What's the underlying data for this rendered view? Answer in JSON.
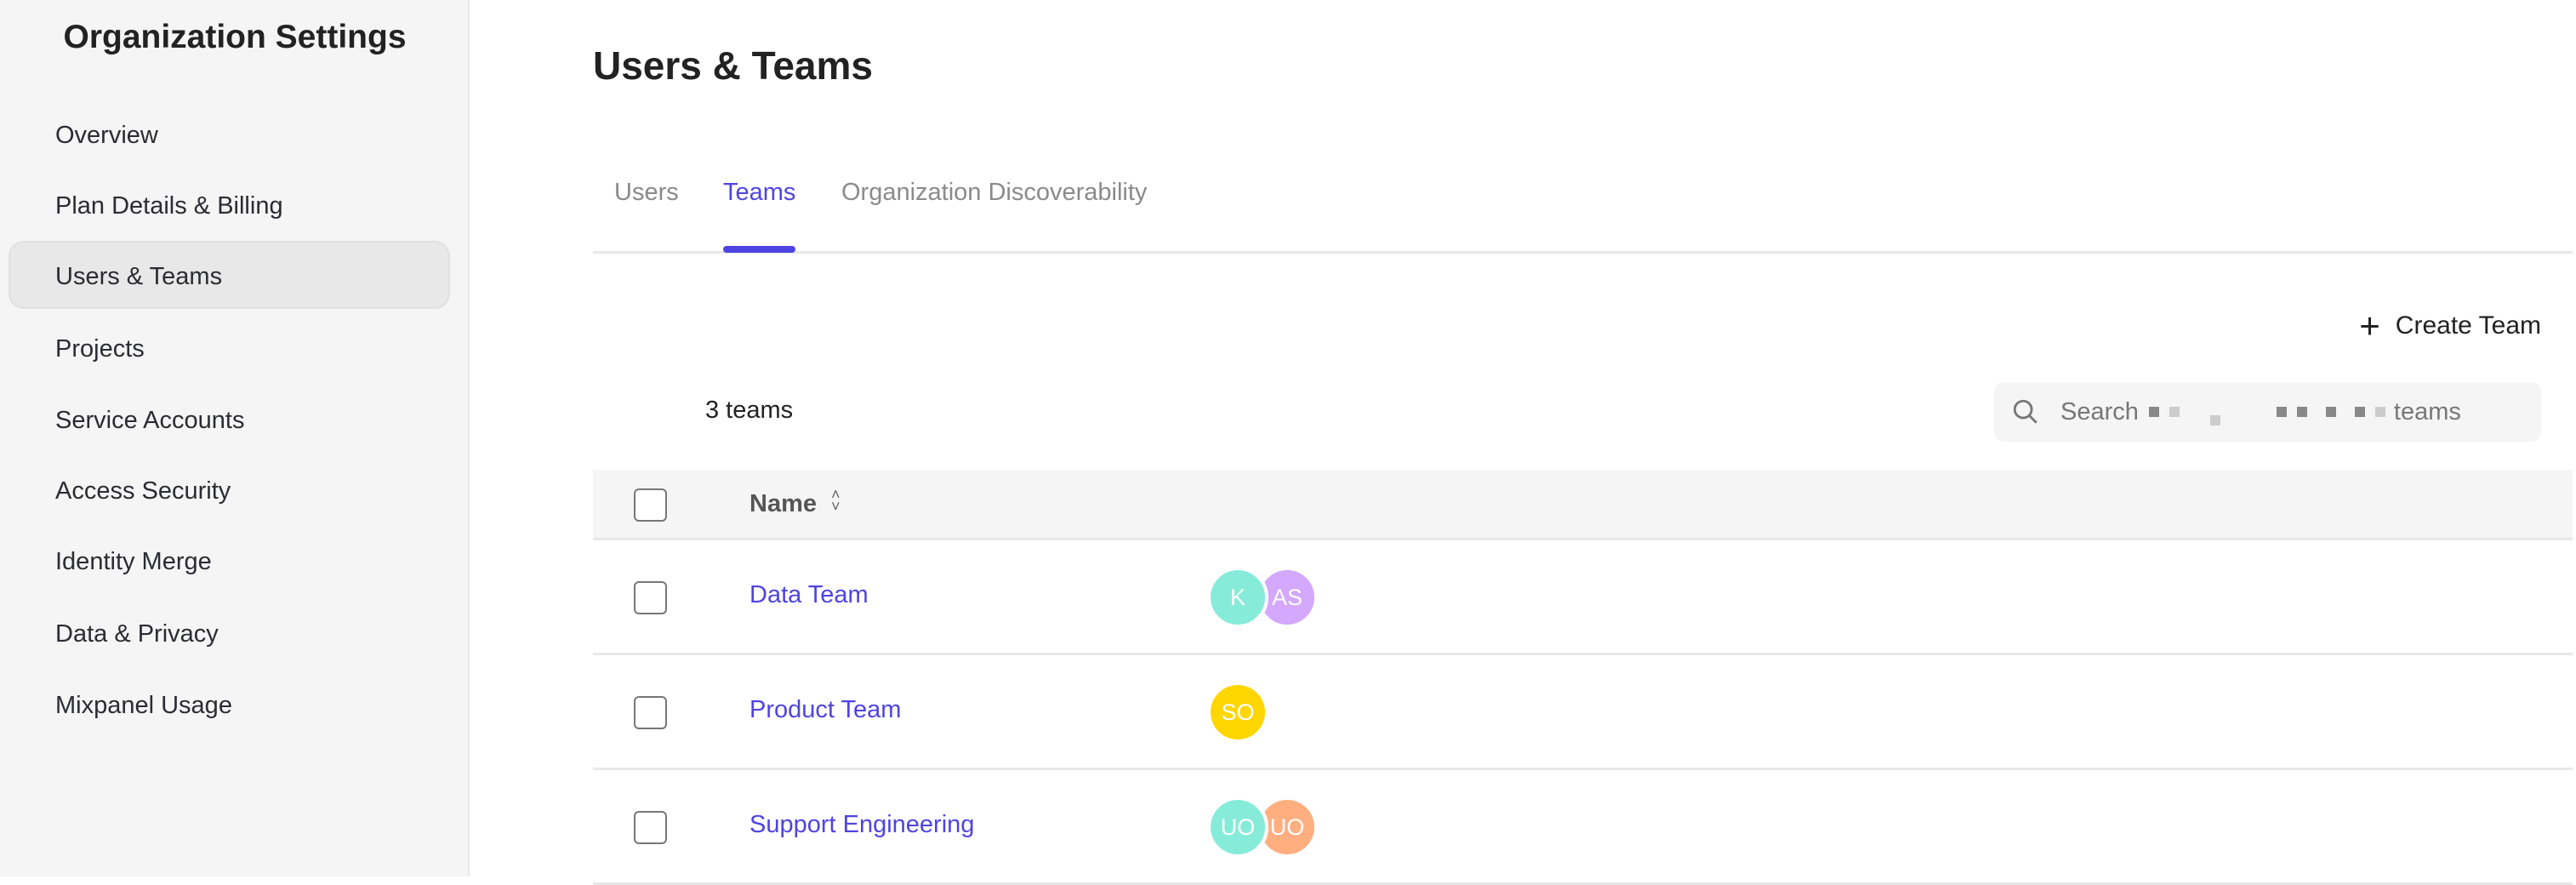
{
  "sidebar": {
    "title": "Organization Settings",
    "items": [
      {
        "label": "Overview"
      },
      {
        "label": "Plan Details & Billing"
      },
      {
        "label": "Users & Teams",
        "active": true
      },
      {
        "label": "Projects"
      },
      {
        "label": "Service Accounts"
      },
      {
        "label": "Access Security"
      },
      {
        "label": "Identity Merge"
      },
      {
        "label": "Data & Privacy"
      },
      {
        "label": "Mixpanel Usage"
      }
    ]
  },
  "header": {
    "title": "Users & Teams"
  },
  "tabs": [
    {
      "label": "Users"
    },
    {
      "label": "Teams",
      "active": true
    },
    {
      "label": "Organization Discoverability"
    }
  ],
  "toolbar": {
    "create_label": "Create Team",
    "count": "3 teams",
    "search_prefix": "Search",
    "search_suffix": "teams"
  },
  "table": {
    "header": {
      "name": "Name"
    },
    "rows": [
      {
        "name": "Data Team",
        "avatars": [
          {
            "initials": "K",
            "color": "#86ecd9"
          },
          {
            "initials": "AS",
            "color": "#d3a8fd"
          }
        ]
      },
      {
        "name": "Product Team",
        "avatars": [
          {
            "initials": "SO",
            "color": "#ffd600"
          }
        ]
      },
      {
        "name": "Support Engineering",
        "avatars": [
          {
            "initials": "UO",
            "color": "#86ecd9"
          },
          {
            "initials": "UO",
            "color": "#ffae80"
          }
        ]
      }
    ]
  },
  "colors": {
    "accent": "#4f44e0"
  }
}
